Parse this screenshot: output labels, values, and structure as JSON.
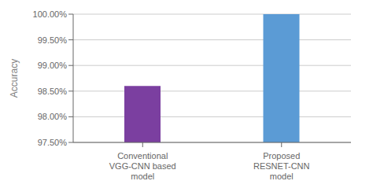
{
  "chart_data": {
    "type": "bar",
    "ylabel": "Accuracy",
    "categories": [
      "Conventional\nVGG-CNN based\nmodel",
      "Proposed\nRESNET-CNN\nmodel"
    ],
    "values": [
      98.6,
      100.0
    ],
    "colors": [
      "#7B3FA0",
      "#5B9BD5"
    ],
    "ylim": [
      97.5,
      100.0
    ],
    "yticks": [
      {
        "value": 97.5,
        "label": "97.50%"
      },
      {
        "value": 98.0,
        "label": "98.00%"
      },
      {
        "value": 98.5,
        "label": "98.50%"
      },
      {
        "value": 99.0,
        "label": "99.00%"
      },
      {
        "value": 99.5,
        "label": "99.50%"
      },
      {
        "value": 100.0,
        "label": "100.00%"
      }
    ],
    "grid": true
  }
}
